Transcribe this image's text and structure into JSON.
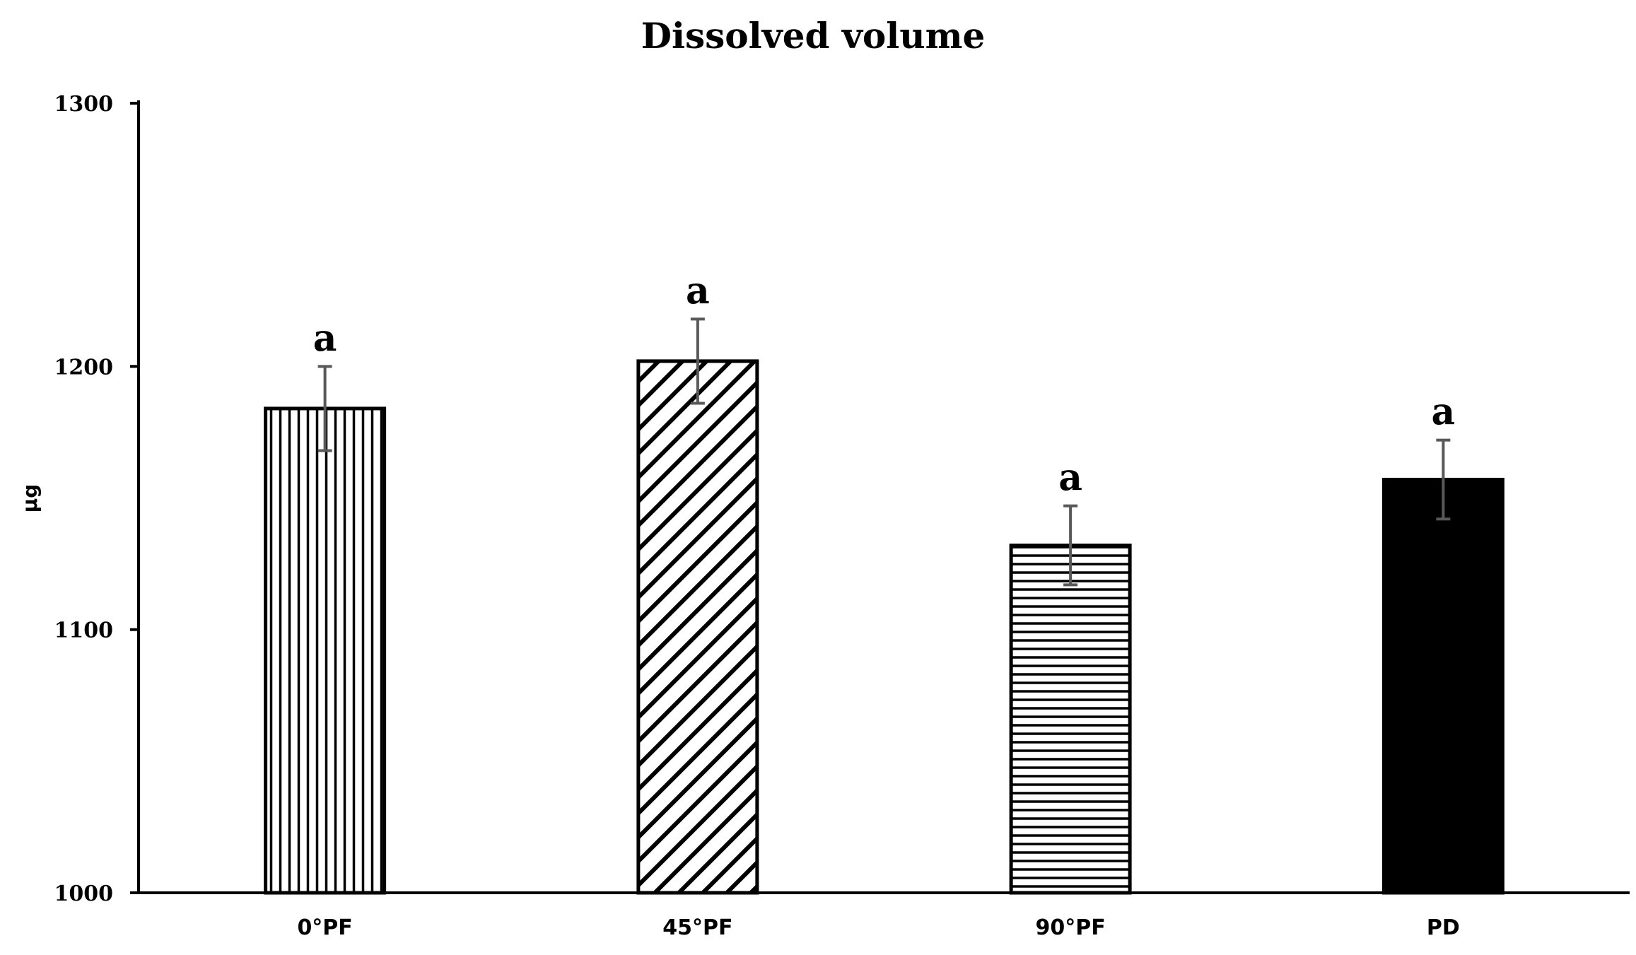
{
  "chart_data": {
    "type": "bar",
    "title": "Dissolved volume",
    "xlabel": "",
    "ylabel": "μg",
    "ylim": [
      1000,
      1300
    ],
    "yticks": [
      "1000",
      "1100",
      "1200",
      "1300"
    ],
    "categories": [
      "0°PF",
      "45°PF",
      "90°PF",
      "PD"
    ],
    "values": [
      1184,
      1202,
      1132,
      1157
    ],
    "errors": [
      16,
      16,
      15,
      15
    ],
    "significance": [
      "a",
      "a",
      "a",
      "a"
    ],
    "patterns": [
      "vertical-lines",
      "diagonal-lines",
      "horizontal-lines",
      "solid-black"
    ],
    "grid": false,
    "legend": "none",
    "colors": {
      "bar_outline": "#000000",
      "bar_fill_solid": "#000000",
      "error_bar": "#595959",
      "axis": "#000000"
    }
  }
}
